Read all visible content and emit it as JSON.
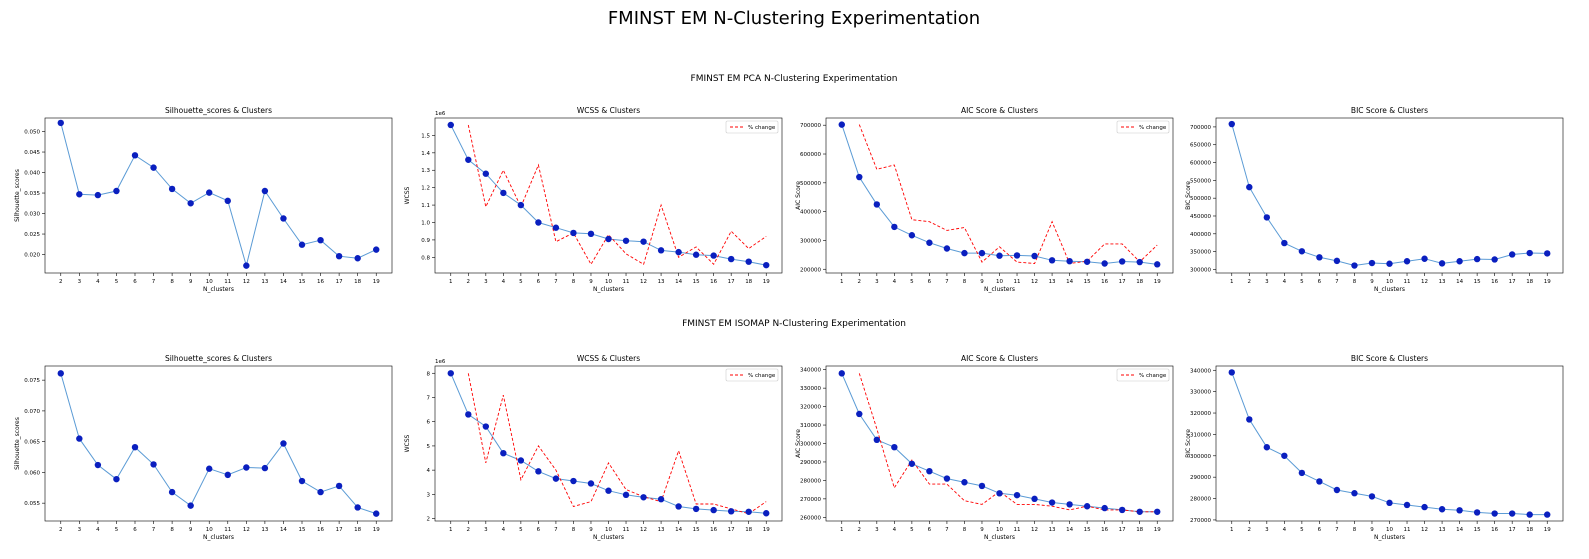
{
  "figure": {
    "title": "FMINST EM N-Clustering Experimentation",
    "row_titles": [
      "FMINST EM PCA N-Clustering Experimentation",
      "FMINST EM ISOMAP N-Clustering Experimentation"
    ]
  },
  "colors": {
    "line": "#5b9bd5",
    "marker": "#0a1fbf",
    "change": "#ff0000"
  },
  "chart_data": [
    {
      "type": "line",
      "title": "Silhouette_scores & Clusters",
      "xlabel": "N_clusters",
      "ylabel": "Silhouette_scores",
      "x": [
        2,
        3,
        4,
        5,
        6,
        7,
        8,
        9,
        10,
        11,
        12,
        13,
        14,
        15,
        16,
        17,
        18,
        19
      ],
      "xticks": [
        2,
        3,
        4,
        5,
        6,
        7,
        8,
        9,
        10,
        11,
        12,
        13,
        14,
        15,
        16,
        17,
        18,
        19
      ],
      "ylim": [
        0.0155,
        0.0533
      ],
      "yticks": [
        0.02,
        0.025,
        0.03,
        0.035,
        0.04,
        0.045,
        0.05
      ],
      "ytick_labels": [
        "0.020",
        "0.025",
        "0.030",
        "0.035",
        "0.040",
        "0.045",
        "0.050"
      ],
      "series": [
        {
          "values": [
            0.0521,
            0.0347,
            0.0345,
            0.0355,
            0.0442,
            0.0412,
            0.036,
            0.0325,
            0.0351,
            0.0331,
            0.0173,
            0.0355,
            0.0288,
            0.0224,
            0.0235,
            0.0196,
            0.0191,
            0.0212
          ]
        }
      ]
    },
    {
      "type": "line",
      "title": "WCSS & Clusters",
      "xlabel": "N_clusters",
      "ylabel": "WCSS",
      "y_offset_label": "1e6",
      "x": [
        1,
        2,
        3,
        4,
        5,
        6,
        7,
        8,
        9,
        10,
        11,
        12,
        13,
        14,
        15,
        16,
        17,
        18,
        19
      ],
      "xticks": [
        1,
        2,
        3,
        4,
        5,
        6,
        7,
        8,
        9,
        10,
        11,
        12,
        13,
        14,
        15,
        16,
        17,
        18,
        19
      ],
      "ylim": [
        0.71,
        1.6
      ],
      "yticks": [
        0.8,
        0.9,
        1.0,
        1.1,
        1.2,
        1.3,
        1.4,
        1.5
      ],
      "ytick_labels": [
        "0.8",
        "0.9",
        "1.0",
        "1.1",
        "1.2",
        "1.3",
        "1.4",
        "1.5"
      ],
      "legend": [
        "% change"
      ],
      "legend_position": "upper right",
      "series": [
        {
          "values": [
            1.56,
            1.36,
            1.28,
            1.17,
            1.1,
            1.0,
            0.97,
            0.94,
            0.935,
            0.905,
            0.895,
            0.89,
            0.84,
            0.83,
            0.815,
            0.81,
            0.79,
            0.775,
            0.755
          ]
        }
      ],
      "change_series": {
        "name": "% change",
        "x": [
          2,
          3,
          4,
          5,
          6,
          7,
          8,
          9,
          10,
          11,
          12,
          13,
          14,
          15,
          16,
          17,
          18,
          19
        ],
        "values": [
          1.56,
          1.09,
          1.3,
          1.09,
          1.33,
          0.89,
          0.94,
          0.76,
          0.93,
          0.82,
          0.76,
          1.1,
          0.8,
          0.86,
          0.76,
          0.95,
          0.85,
          0.92
        ]
      }
    },
    {
      "type": "line",
      "title": "AIC Score & Clusters",
      "xlabel": "N_clusters",
      "ylabel": "AIC Score",
      "x": [
        1,
        2,
        3,
        4,
        5,
        6,
        7,
        8,
        9,
        10,
        11,
        12,
        13,
        14,
        15,
        16,
        17,
        18,
        19
      ],
      "xticks": [
        1,
        2,
        3,
        4,
        5,
        6,
        7,
        8,
        9,
        10,
        11,
        12,
        13,
        14,
        15,
        16,
        17,
        18,
        19
      ],
      "ylim": [
        187000,
        725000
      ],
      "yticks": [
        200000,
        300000,
        400000,
        500000,
        600000,
        700000
      ],
      "ytick_labels": [
        "200000",
        "300000",
        "400000",
        "500000",
        "600000",
        "700000"
      ],
      "legend": [
        "% change"
      ],
      "legend_position": "upper right",
      "series": [
        {
          "values": [
            702000,
            520000,
            425000,
            347000,
            318000,
            292000,
            272000,
            256000,
            256000,
            247000,
            248000,
            246000,
            231000,
            228000,
            226000,
            220000,
            227000,
            225000,
            217000
          ]
        }
      ],
      "change_series": {
        "name": "% change",
        "x": [
          2,
          3,
          4,
          5,
          6,
          7,
          8,
          9,
          10,
          11,
          12,
          13,
          14,
          15,
          16,
          17,
          18,
          19
        ],
        "values": [
          702000,
          547000,
          562000,
          372000,
          365000,
          335000,
          345000,
          225000,
          278000,
          225000,
          220000,
          365000,
          220000,
          228000,
          288000,
          288000,
          226000,
          284000
        ]
      }
    },
    {
      "type": "line",
      "title": "BIC Score & Clusters",
      "xlabel": "N_clusters",
      "ylabel": "BIC Score",
      "x": [
        1,
        2,
        3,
        4,
        5,
        6,
        7,
        8,
        9,
        10,
        11,
        12,
        13,
        14,
        15,
        16,
        17,
        18,
        19
      ],
      "xticks": [
        1,
        2,
        3,
        4,
        5,
        6,
        7,
        8,
        9,
        10,
        11,
        12,
        13,
        14,
        15,
        16,
        17,
        18,
        19
      ],
      "ylim": [
        290000,
        725000
      ],
      "yticks": [
        300000,
        350000,
        400000,
        450000,
        500000,
        550000,
        600000,
        650000,
        700000
      ],
      "ytick_labels": [
        "300000",
        "350000",
        "400000",
        "450000",
        "500000",
        "550000",
        "600000",
        "650000",
        "700000"
      ],
      "series": [
        {
          "values": [
            708000,
            531000,
            446000,
            374000,
            351000,
            334000,
            324000,
            311000,
            318000,
            316000,
            323000,
            330000,
            317000,
            323000,
            329000,
            328000,
            342000,
            346000,
            345000
          ]
        }
      ]
    },
    {
      "type": "line",
      "title": "Silhouette_scores & Clusters",
      "xlabel": "N_clusters",
      "ylabel": "Silhouette_scores",
      "x": [
        2,
        3,
        4,
        5,
        6,
        7,
        8,
        9,
        10,
        11,
        12,
        13,
        14,
        15,
        16,
        17,
        18,
        19
      ],
      "xticks": [
        2,
        3,
        4,
        5,
        6,
        7,
        8,
        9,
        10,
        11,
        12,
        13,
        14,
        15,
        16,
        17,
        18,
        19
      ],
      "ylim": [
        0.0521,
        0.0773
      ],
      "yticks": [
        0.055,
        0.06,
        0.065,
        0.07,
        0.075
      ],
      "ytick_labels": [
        "0.055",
        "0.060",
        "0.065",
        "0.070",
        "0.075"
      ],
      "series": [
        {
          "values": [
            0.0761,
            0.0655,
            0.0612,
            0.0589,
            0.0641,
            0.0613,
            0.0568,
            0.0546,
            0.0606,
            0.0596,
            0.0608,
            0.0607,
            0.0647,
            0.0586,
            0.0568,
            0.0578,
            0.0543,
            0.0533
          ]
        }
      ]
    },
    {
      "type": "line",
      "title": "WCSS & Clusters",
      "xlabel": "N_clusters",
      "ylabel": "WCSS",
      "y_offset_label": "1e6",
      "x": [
        1,
        2,
        3,
        4,
        5,
        6,
        7,
        8,
        9,
        10,
        11,
        12,
        13,
        14,
        15,
        16,
        17,
        18,
        19
      ],
      "xticks": [
        1,
        2,
        3,
        4,
        5,
        6,
        7,
        8,
        9,
        10,
        11,
        12,
        13,
        14,
        15,
        16,
        17,
        18,
        19
      ],
      "ylim": [
        1.9,
        8.3
      ],
      "yticks": [
        2,
        3,
        4,
        5,
        6,
        7,
        8
      ],
      "ytick_labels": [
        "2",
        "3",
        "4",
        "5",
        "6",
        "7",
        "8"
      ],
      "legend": [
        "% change"
      ],
      "legend_position": "upper right",
      "series": [
        {
          "values": [
            8.0,
            6.3,
            5.8,
            4.7,
            4.4,
            3.95,
            3.65,
            3.55,
            3.45,
            3.15,
            2.98,
            2.88,
            2.8,
            2.5,
            2.4,
            2.35,
            2.3,
            2.28,
            2.22
          ]
        }
      ],
      "change_series": {
        "name": "% change",
        "x": [
          2,
          3,
          4,
          5,
          6,
          7,
          8,
          9,
          10,
          11,
          12,
          13,
          14,
          15,
          16,
          17,
          18,
          19
        ],
        "values": [
          8.0,
          4.3,
          7.1,
          3.6,
          5.0,
          4.0,
          2.5,
          2.7,
          4.3,
          3.2,
          2.9,
          2.7,
          4.8,
          2.6,
          2.6,
          2.4,
          2.2,
          2.7
        ]
      }
    },
    {
      "type": "line",
      "title": "AIC Score & Clusters",
      "xlabel": "N_clusters",
      "ylabel": "AIC Score",
      "x": [
        1,
        2,
        3,
        4,
        5,
        6,
        7,
        8,
        9,
        10,
        11,
        12,
        13,
        14,
        15,
        16,
        17,
        18,
        19
      ],
      "xticks": [
        1,
        2,
        3,
        4,
        5,
        6,
        7,
        8,
        9,
        10,
        11,
        12,
        13,
        14,
        15,
        16,
        17,
        18,
        19
      ],
      "ylim": [
        258000,
        342000
      ],
      "yticks": [
        260000,
        270000,
        280000,
        290000,
        300000,
        310000,
        320000,
        330000,
        340000
      ],
      "ytick_labels": [
        "260000",
        "270000",
        "280000",
        "290000",
        "300000",
        "310000",
        "320000",
        "330000",
        "340000"
      ],
      "legend": [
        "% change"
      ],
      "legend_position": "upper right",
      "series": [
        {
          "values": [
            338000,
            316000,
            302000,
            298000,
            289000,
            285000,
            281000,
            279000,
            277000,
            273000,
            272000,
            270000,
            268000,
            267000,
            266000,
            265000,
            264000,
            263000,
            263000
          ]
        }
      ],
      "change_series": {
        "name": "% change",
        "x": [
          2,
          3,
          4,
          5,
          6,
          7,
          8,
          9,
          10,
          11,
          12,
          13,
          14,
          15,
          16,
          17,
          18,
          19
        ],
        "values": [
          338000,
          308000,
          276000,
          291000,
          278000,
          278000,
          269000,
          267000,
          274000,
          267000,
          267000,
          266000,
          264000,
          266000,
          264000,
          264000,
          263000,
          263000
        ]
      }
    },
    {
      "type": "line",
      "title": "BIC Score & Clusters",
      "xlabel": "N_clusters",
      "ylabel": "BIC Score",
      "x": [
        1,
        2,
        3,
        4,
        5,
        6,
        7,
        8,
        9,
        10,
        11,
        12,
        13,
        14,
        15,
        16,
        17,
        18,
        19
      ],
      "xticks": [
        1,
        2,
        3,
        4,
        5,
        6,
        7,
        8,
        9,
        10,
        11,
        12,
        13,
        14,
        15,
        16,
        17,
        18,
        19
      ],
      "ylim": [
        269500,
        342000
      ],
      "yticks": [
        270000,
        280000,
        290000,
        300000,
        310000,
        320000,
        330000,
        340000
      ],
      "ytick_labels": [
        "270000",
        "280000",
        "290000",
        "300000",
        "310000",
        "320000",
        "330000",
        "340000"
      ],
      "series": [
        {
          "values": [
            339000,
            317000,
            304000,
            300000,
            292000,
            288000,
            284000,
            282500,
            281000,
            278000,
            277000,
            276000,
            275000,
            274500,
            273500,
            273000,
            273000,
            272500,
            272500
          ]
        }
      ]
    }
  ]
}
